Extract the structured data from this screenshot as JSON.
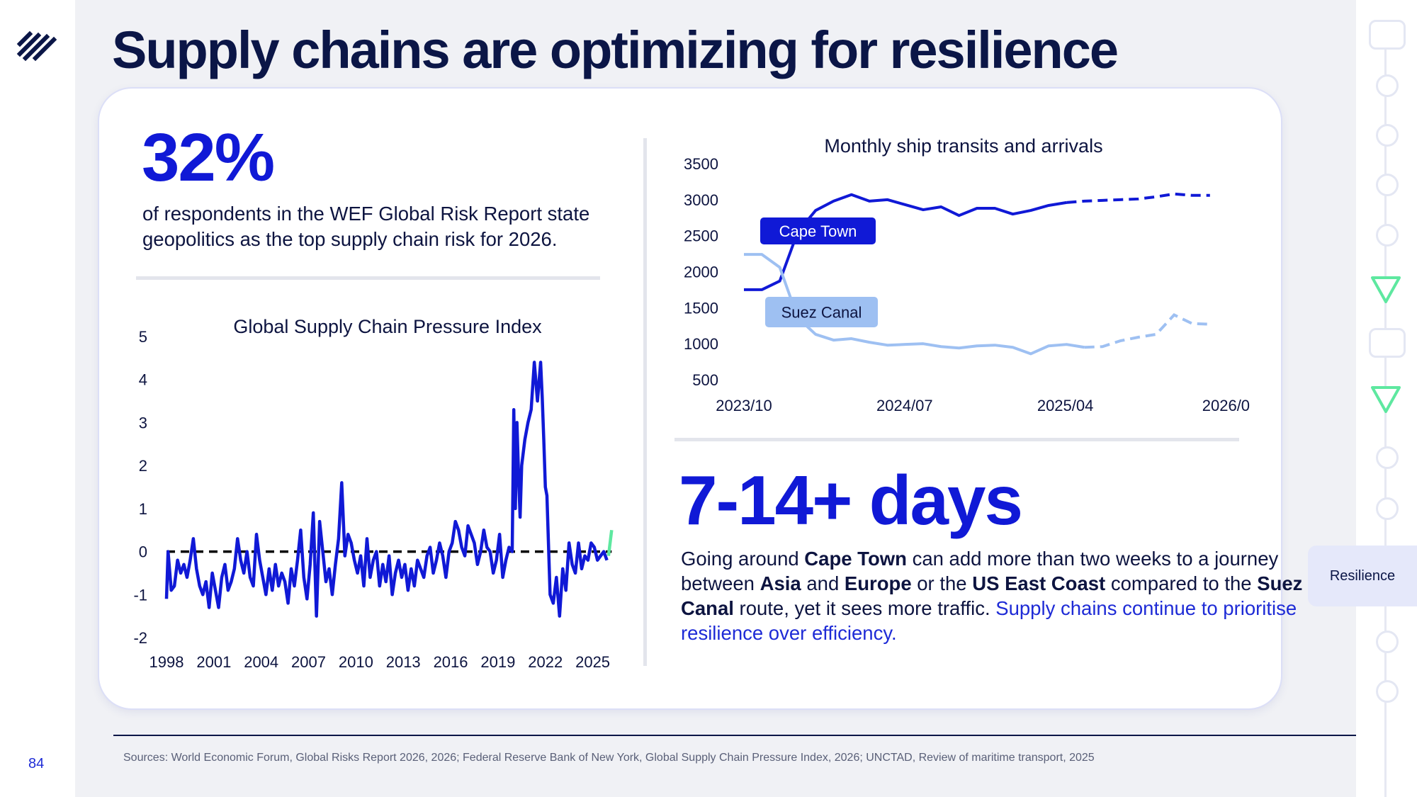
{
  "slide": {
    "title": "Supply chains are optimizing for resilience",
    "page_number": "84",
    "sources": "Sources: World Economic Forum, Global Risks Report 2026, 2026; Federal Reserve Bank of New York, Global Supply Chain Pressure Index, 2026; UNCTAD, Review of maritime transport, 2025",
    "section_label": "Resilience"
  },
  "stat_1": {
    "value": "32%",
    "text": "of respondents in the WEF Global Risk Report state geopolitics as the top supply chain risk for 2026."
  },
  "stat_2": {
    "value": "7-14+ days",
    "text_parts": [
      {
        "text": "Going around ",
        "bold": false
      },
      {
        "text": "Cape Town",
        "bold": true
      },
      {
        "text": " can add more than two weeks to a journey between ",
        "bold": false
      },
      {
        "text": "Asia",
        "bold": true
      },
      {
        "text": " and ",
        "bold": false
      },
      {
        "text": "Europe",
        "bold": true
      },
      {
        "text": " or the ",
        "bold": false
      },
      {
        "text": "US East Coast",
        "bold": true
      },
      {
        "text": " compared to the ",
        "bold": false
      },
      {
        "text": "Suez Canal",
        "bold": true
      },
      {
        "text": " route, yet it sees more traffic. ",
        "bold": false
      }
    ],
    "highlight": "Supply chains continue to prioritise resilience over efficiency."
  },
  "colors": {
    "accent": "#1019d6",
    "navy": "#0b1647",
    "light_blue": "#9ec0f2",
    "highlight_green": "#5ee8a0"
  },
  "chart_data": [
    {
      "type": "line",
      "title": "Global Supply Chain Pressure Index",
      "xlim": [
        1998,
        2026.5
      ],
      "ylim": [
        -2,
        5
      ],
      "x_ticks": [
        "1998",
        "2001",
        "2004",
        "2007",
        "2010",
        "2013",
        "2016",
        "2019",
        "2022",
        "2025"
      ],
      "x_tick_values": [
        1998,
        2001,
        2004,
        2007,
        2010,
        2013,
        2016,
        2019,
        2022,
        2025
      ],
      "y_ticks": [
        "5",
        "4",
        "3",
        "2",
        "1",
        "0",
        "-1",
        "-2"
      ],
      "y_tick_values": [
        5,
        4,
        3,
        2,
        1,
        0,
        -1,
        -2
      ],
      "reference_line": {
        "y": 0,
        "style": "dashed"
      },
      "series": [
        {
          "color": "#1019d6",
          "x": [
            1998.0,
            1998.1,
            1998.3,
            1998.5,
            1998.7,
            1998.9,
            1999.1,
            1999.3,
            1999.5,
            1999.7,
            1999.9,
            2000.1,
            2000.3,
            2000.5,
            2000.7,
            2000.9,
            2001.1,
            2001.3,
            2001.5,
            2001.7,
            2001.9,
            2002.1,
            2002.3,
            2002.5,
            2002.7,
            2002.9,
            2003.1,
            2003.3,
            2003.5,
            2003.7,
            2003.9,
            2004.1,
            2004.3,
            2004.5,
            2004.7,
            2004.9,
            2005.1,
            2005.3,
            2005.5,
            2005.7,
            2005.9,
            2006.1,
            2006.3,
            2006.5,
            2006.7,
            2006.9,
            2007.1,
            2007.3,
            2007.5,
            2007.7,
            2007.9,
            2008.1,
            2008.3,
            2008.5,
            2008.7,
            2008.9,
            2009.1,
            2009.3,
            2009.5,
            2009.7,
            2009.9,
            2010.1,
            2010.3,
            2010.5,
            2010.7,
            2010.9,
            2011.1,
            2011.3,
            2011.5,
            2011.7,
            2011.9,
            2012.1,
            2012.3,
            2012.5,
            2012.7,
            2012.9,
            2013.1,
            2013.3,
            2013.5,
            2013.7,
            2013.9,
            2014.1,
            2014.3,
            2014.5,
            2014.7,
            2014.9,
            2015.1,
            2015.3,
            2015.5,
            2015.7,
            2015.9,
            2016.1,
            2016.3,
            2016.5,
            2016.7,
            2016.9,
            2017.1,
            2017.3,
            2017.5,
            2017.7,
            2017.9,
            2018.1,
            2018.3,
            2018.5,
            2018.7,
            2018.9,
            2019.1,
            2019.3,
            2019.5,
            2019.7,
            2019.9,
            2020.0,
            2020.1,
            2020.2,
            2020.3,
            2020.4,
            2020.5,
            2020.7,
            2020.9,
            2021.1,
            2021.3,
            2021.5,
            2021.7,
            2021.8,
            2021.9,
            2022.0,
            2022.1,
            2022.3,
            2022.5,
            2022.7,
            2022.9,
            2023.1,
            2023.3,
            2023.5,
            2023.7,
            2023.9,
            2024.1,
            2024.3,
            2024.5,
            2024.7,
            2024.9,
            2025.1,
            2025.3,
            2025.5,
            2025.7,
            2025.9
          ],
          "values": [
            -1.1,
            0.0,
            -0.9,
            -0.8,
            -0.2,
            -0.5,
            -0.3,
            -0.6,
            -0.2,
            0.3,
            -0.4,
            -0.8,
            -1.0,
            -0.7,
            -1.3,
            -0.5,
            -0.9,
            -1.3,
            -0.6,
            -0.3,
            -0.9,
            -0.7,
            -0.4,
            0.3,
            -0.2,
            -0.5,
            0.0,
            -0.6,
            -0.8,
            0.4,
            -0.2,
            -0.6,
            -1.0,
            -0.4,
            -0.9,
            -0.3,
            -0.8,
            -0.5,
            -0.7,
            -1.2,
            -0.4,
            -0.8,
            -0.2,
            0.5,
            -0.6,
            -1.1,
            -0.3,
            0.9,
            -1.5,
            0.7,
            0.0,
            -0.7,
            -0.4,
            -1.0,
            -0.3,
            0.3,
            1.6,
            -0.1,
            0.4,
            0.2,
            -0.2,
            -0.5,
            -0.1,
            -0.8,
            0.3,
            -0.6,
            -0.2,
            0.0,
            -0.8,
            -0.3,
            -0.7,
            -0.1,
            -1.0,
            -0.5,
            -0.2,
            -0.6,
            -0.3,
            -0.9,
            -0.4,
            -0.8,
            -0.2,
            -0.4,
            -0.6,
            -0.1,
            0.1,
            -0.5,
            -0.2,
            0.2,
            -0.1,
            -0.6,
            0.0,
            0.2,
            0.7,
            0.5,
            0.1,
            -0.1,
            0.6,
            0.4,
            0.2,
            -0.3,
            0.0,
            0.5,
            0.1,
            0.0,
            -0.5,
            -0.2,
            0.4,
            -0.6,
            -0.2,
            0.1,
            0.0,
            3.3,
            1.0,
            3.0,
            1.8,
            0.8,
            2.0,
            2.6,
            3.0,
            3.3,
            4.4,
            3.5,
            4.4,
            3.6,
            2.6,
            1.5,
            1.3,
            -1.0,
            -1.2,
            -0.6,
            -1.5,
            -0.4,
            -0.9,
            0.2,
            -0.3,
            -0.5,
            0.2,
            -0.4,
            -0.1,
            -0.2,
            0.2,
            0.1,
            -0.2,
            -0.1,
            0.0,
            -0.2
          ]
        }
      ],
      "highlight_segment": {
        "color": "#5ee8a0",
        "x": [
          2026.0,
          2026.2
        ],
        "values": [
          -0.1,
          0.5
        ]
      }
    },
    {
      "type": "line",
      "title": "Monthly ship transits and arrivals",
      "ylim": [
        500,
        3500
      ],
      "y_ticks": [
        "3500",
        "3000",
        "2500",
        "2000",
        "1500",
        "1000",
        "500"
      ],
      "y_tick_values": [
        3500,
        3000,
        2500,
        2000,
        1500,
        1000,
        500
      ],
      "x_ticks": [
        "2023/10",
        "2024/07",
        "2025/04",
        "2026/0"
      ],
      "x_tick_index": [
        0,
        9,
        18,
        27
      ],
      "series": [
        {
          "name": "Cape Town",
          "color": "#1019d6",
          "values": [
            1750,
            1750,
            1870,
            2550,
            2850,
            2980,
            3070,
            2980,
            3000,
            2930,
            2860,
            2900,
            2780,
            2880,
            2880,
            2800,
            2850,
            2920,
            2960,
            2980,
            2990,
            3000,
            3010,
            3040,
            3080,
            3060,
            3060
          ],
          "dashed_from_index": 18
        },
        {
          "name": "Suez Canal",
          "color": "#9ec0f2",
          "values": [
            2240,
            2240,
            2060,
            1360,
            1130,
            1050,
            1070,
            1020,
            980,
            990,
            1000,
            960,
            940,
            970,
            980,
            950,
            860,
            970,
            990,
            950,
            960,
            1040,
            1090,
            1130,
            1400,
            1280,
            1270
          ],
          "dashed_from_index": 19
        }
      ]
    }
  ]
}
